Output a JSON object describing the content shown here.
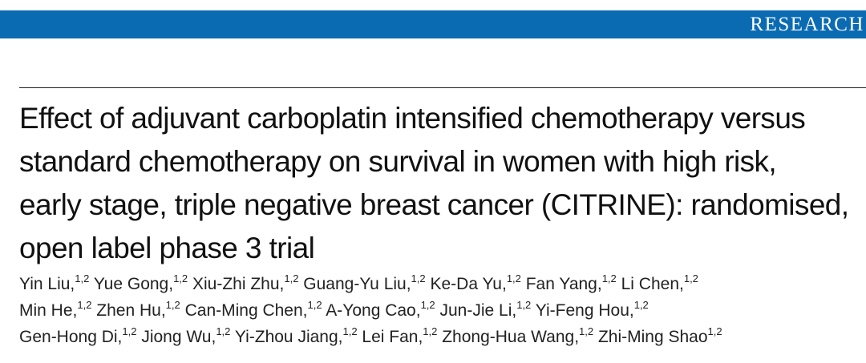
{
  "header": {
    "section_label": "RESEARCH",
    "bar_color": "#0a6bb3"
  },
  "article": {
    "title_lines": [
      "Effect of adjuvant carboplatin intensified chemotherapy versus",
      "standard chemotherapy on survival in women with high risk,",
      "early stage, triple negative breast cancer (CITRINE): randomised,",
      "open label phase 3 trial"
    ],
    "author_lines": [
      [
        {
          "name": "Yin Liu,",
          "aff": "1,2"
        },
        {
          "name": "Yue Gong,",
          "aff": "1,2"
        },
        {
          "name": "Xiu-Zhi Zhu,",
          "aff": "1,2"
        },
        {
          "name": "Guang-Yu Liu,",
          "aff": "1,2"
        },
        {
          "name": "Ke-Da Yu,",
          "aff": "1,2"
        },
        {
          "name": "Fan Yang,",
          "aff": "1,2"
        },
        {
          "name": "Li Chen,",
          "aff": "1,2"
        }
      ],
      [
        {
          "name": "Min He,",
          "aff": "1,2"
        },
        {
          "name": "Zhen Hu,",
          "aff": "1,2"
        },
        {
          "name": "Can-Ming Chen,",
          "aff": "1,2"
        },
        {
          "name": "A-Yong Cao,",
          "aff": "1,2"
        },
        {
          "name": "Jun-Jie Li,",
          "aff": "1,2"
        },
        {
          "name": "Yi-Feng Hou,",
          "aff": "1,2"
        }
      ],
      [
        {
          "name": "Gen-Hong Di,",
          "aff": "1,2"
        },
        {
          "name": "Jiong Wu,",
          "aff": "1,2"
        },
        {
          "name": "Yi-Zhou Jiang,",
          "aff": "1,2"
        },
        {
          "name": "Lei Fan,",
          "aff": "1,2"
        },
        {
          "name": "Zhong-Hua Wang,",
          "aff": "1,2"
        },
        {
          "name": "Zhi-Ming Shao",
          "aff": "1,2"
        }
      ]
    ]
  }
}
